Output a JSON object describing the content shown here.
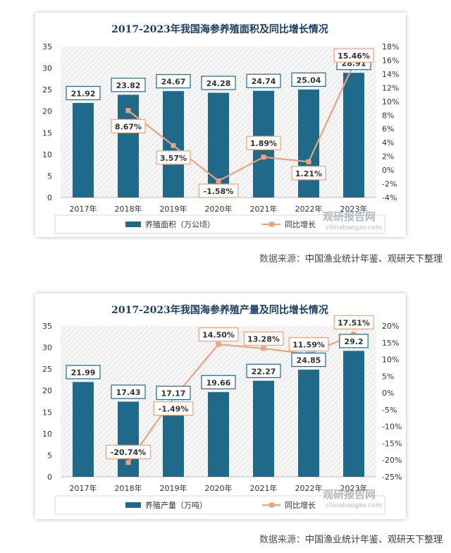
{
  "charts": [
    {
      "chart_data": {
        "type": "bar+line",
        "title": "2017-2023年我国海参养殖面积及同比增长情况",
        "categories": [
          "2017年",
          "2018年",
          "2019年",
          "2020年",
          "2021年",
          "2022年",
          "2023年"
        ],
        "series": [
          {
            "name": "养殖面积（万公顷）",
            "type": "bar",
            "axis": "left",
            "values": [
              21.92,
              23.82,
              24.67,
              24.28,
              24.74,
              25.04,
              28.91
            ],
            "labels": [
              "21.92",
              "23.82",
              "24.67",
              "24.28",
              "24.74",
              "25.04",
              "28.91"
            ]
          },
          {
            "name": "同比增长",
            "type": "line",
            "axis": "right",
            "values": [
              null,
              8.67,
              3.57,
              -1.58,
              1.89,
              1.21,
              15.46
            ],
            "labels": [
              "",
              "8.67%",
              "3.57%",
              "-1.58%",
              "1.89%",
              "1.21%",
              "15.46%"
            ]
          }
        ],
        "left_axis": {
          "min": 0,
          "max": 35,
          "step": 5,
          "ticks": [
            "0",
            "5",
            "10",
            "15",
            "20",
            "25",
            "30",
            "35"
          ]
        },
        "right_axis": {
          "min": -4,
          "max": 18,
          "step": 2,
          "ticks": [
            "-4%",
            "-2%",
            "0%",
            "2%",
            "4%",
            "6%",
            "8%",
            "10%",
            "12%",
            "14%",
            "16%",
            "18%"
          ]
        },
        "legend_position": "bottom"
      },
      "watermark": {
        "main": "观研报告网",
        "sub": "chinabaogao.com"
      },
      "source": {
        "label": "数据来源：",
        "text": "中国渔业统计年鉴、观研天下整理"
      }
    },
    {
      "chart_data": {
        "type": "bar+line",
        "title": "2017-2023年我国海参养殖产量及同比增长情况",
        "categories": [
          "2017年",
          "2018年",
          "2019年",
          "2020年",
          "2021年",
          "2022年",
          "2023年"
        ],
        "series": [
          {
            "name": "养殖产量（万吨）",
            "type": "bar",
            "axis": "left",
            "values": [
              21.99,
              17.43,
              17.17,
              19.66,
              22.27,
              24.85,
              29.2
            ],
            "labels": [
              "21.99",
              "17.43",
              "17.17",
              "19.66",
              "22.27",
              "24.85",
              "29.2"
            ]
          },
          {
            "name": "同比增长",
            "type": "line",
            "axis": "right",
            "values": [
              null,
              -20.74,
              -1.49,
              14.5,
              13.28,
              11.59,
              17.51
            ],
            "labels": [
              "",
              "-20.74%",
              "-1.49%",
              "14.50%",
              "13.28%",
              "11.59%",
              "17.51%"
            ]
          }
        ],
        "left_axis": {
          "min": 0,
          "max": 35,
          "step": 5,
          "ticks": [
            "0",
            "5",
            "10",
            "15",
            "20",
            "25",
            "30",
            "35"
          ]
        },
        "right_axis": {
          "min": -25,
          "max": 20,
          "step": 5,
          "ticks": [
            "-25%",
            "-20%",
            "-15%",
            "-10%",
            "-5%",
            "0%",
            "5%",
            "10%",
            "15%",
            "20%"
          ]
        },
        "legend_position": "bottom"
      },
      "watermark": {
        "main": "观研报告网",
        "sub": "chinabaogao.com"
      },
      "source": {
        "label": "数据来源：",
        "text": "中国渔业统计年鉴、观研天下整理"
      }
    }
  ],
  "colors": {
    "bar": "#1f6a8a",
    "line": "#f0a07d",
    "label_border": "#1f6a8a",
    "line_label_border": "#f0a07d",
    "title": "#1a3d66",
    "hatch": "#e2e2e2"
  }
}
